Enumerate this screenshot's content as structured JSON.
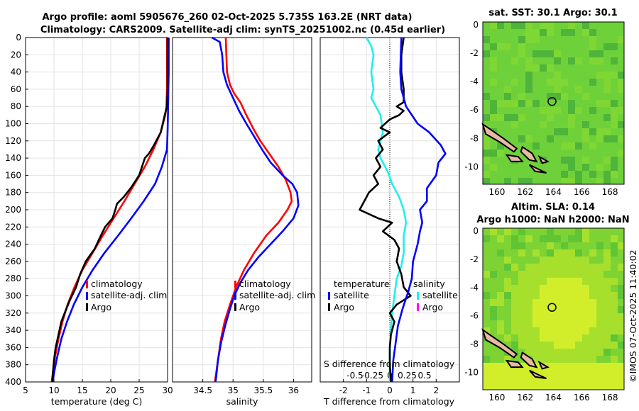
{
  "title": {
    "line1": "Argo profile: aoml 5905676_260 02-Oct-2025 5.735S 163.2E (NRT data)",
    "line2": "Climatology: CARS2009. Satellite-adj clim: synTS_20251002.nc (0.45d earlier)"
  },
  "credit": "©IMOS 07-Oct-2025 11:40:02",
  "colors": {
    "climatology": "#ff0000",
    "satellite": "#0000ff",
    "argo": "#000000",
    "cyan": "#22eeee",
    "magenta": "#ff00ff"
  },
  "chart_data": [
    {
      "type": "line",
      "id": "temperature",
      "xlabel": "temperature (deg C)",
      "ylabel": "",
      "xlim": [
        5,
        30
      ],
      "ylim": [
        400,
        0
      ],
      "xticks": [
        5,
        10,
        15,
        20,
        25,
        30
      ],
      "yticks": [
        0,
        20,
        40,
        60,
        80,
        100,
        120,
        140,
        160,
        180,
        200,
        220,
        240,
        260,
        280,
        300,
        320,
        340,
        360,
        380,
        400
      ],
      "grid": true,
      "legend": {
        "placement": "center-right",
        "entries": [
          "climatology",
          "satellite-adj. clim",
          "Argo"
        ]
      },
      "series": [
        {
          "name": "climatology",
          "color": "climatology",
          "points": [
            [
              29.9,
              0
            ],
            [
              29.9,
              20
            ],
            [
              29.9,
              40
            ],
            [
              29.9,
              60
            ],
            [
              29.8,
              80
            ],
            [
              29.6,
              90
            ],
            [
              28.8,
              110
            ],
            [
              27.5,
              130
            ],
            [
              26,
              150
            ],
            [
              24.2,
              170
            ],
            [
              22.4,
              190
            ],
            [
              20.5,
              210
            ],
            [
              18.6,
              230
            ],
            [
              16.8,
              250
            ],
            [
              15,
              270
            ],
            [
              13.6,
              290
            ],
            [
              12.4,
              310
            ],
            [
              11.5,
              330
            ],
            [
              10.8,
              350
            ],
            [
              10.2,
              370
            ],
            [
              9.8,
              390
            ],
            [
              9.6,
              400
            ]
          ]
        },
        {
          "name": "satellite-adj. clim",
          "color": "satellite",
          "points": [
            [
              30.2,
              0
            ],
            [
              30.2,
              40
            ],
            [
              30.1,
              80
            ],
            [
              30,
              110
            ],
            [
              29.9,
              130
            ],
            [
              29,
              150
            ],
            [
              27.8,
              170
            ],
            [
              25.8,
              190
            ],
            [
              23.6,
              210
            ],
            [
              21.3,
              230
            ],
            [
              18.9,
              250
            ],
            [
              16.8,
              270
            ],
            [
              15,
              290
            ],
            [
              13.5,
              310
            ],
            [
              12.3,
              330
            ],
            [
              11.3,
              350
            ],
            [
              10.6,
              370
            ],
            [
              10,
              390
            ],
            [
              9.8,
              400
            ]
          ]
        },
        {
          "name": "Argo",
          "color": "argo",
          "points": [
            [
              30,
              0
            ],
            [
              30,
              20
            ],
            [
              30,
              40
            ],
            [
              30,
              60
            ],
            [
              29.9,
              80
            ],
            [
              29.5,
              90
            ],
            [
              28.8,
              110
            ],
            [
              27.6,
              125
            ],
            [
              26.7,
              135
            ],
            [
              26,
              140
            ],
            [
              25.5,
              150
            ],
            [
              25,
              160
            ],
            [
              24,
              170
            ],
            [
              23.5,
              175
            ],
            [
              22.3,
              185
            ],
            [
              21.1,
              193
            ],
            [
              20.8,
              200
            ],
            [
              20.3,
              210
            ],
            [
              19,
              220
            ],
            [
              17.9,
              235
            ],
            [
              17.2,
              245
            ],
            [
              15.6,
              260
            ],
            [
              14.6,
              275
            ],
            [
              13.9,
              290
            ],
            [
              12.8,
              305
            ],
            [
              12,
              318
            ],
            [
              11.3,
              330
            ],
            [
              10.8,
              345
            ],
            [
              10.3,
              360
            ],
            [
              10,
              375
            ],
            [
              9.8,
              390
            ],
            [
              9.7,
              400
            ]
          ]
        }
      ]
    },
    {
      "type": "line",
      "id": "salinity",
      "xlabel": "salinity",
      "ylabel": "",
      "xlim": [
        34,
        36.3
      ],
      "ylim": [
        400,
        0
      ],
      "xticks": [
        34.5,
        35,
        35.5,
        36
      ],
      "grid": true,
      "legend": {
        "placement": "center-right",
        "entries": [
          "climatology",
          "satellite-adj. clim",
          "Argo"
        ]
      },
      "series": [
        {
          "name": "climatology",
          "color": "climatology",
          "points": [
            [
              34.88,
              0
            ],
            [
              34.89,
              20
            ],
            [
              34.9,
              40
            ],
            [
              34.95,
              55
            ],
            [
              35.02,
              65
            ],
            [
              35.12,
              75
            ],
            [
              35.22,
              90
            ],
            [
              35.33,
              105
            ],
            [
              35.45,
              120
            ],
            [
              35.6,
              135
            ],
            [
              35.75,
              150
            ],
            [
              35.87,
              165
            ],
            [
              35.95,
              180
            ],
            [
              35.97,
              190
            ],
            [
              35.9,
              200
            ],
            [
              35.75,
              215
            ],
            [
              35.55,
              230
            ],
            [
              35.35,
              250
            ],
            [
              35.18,
              270
            ],
            [
              35.05,
              290
            ],
            [
              34.95,
              310
            ],
            [
              34.86,
              330
            ],
            [
              34.8,
              350
            ],
            [
              34.76,
              370
            ],
            [
              34.72,
              390
            ],
            [
              34.7,
              400
            ]
          ]
        },
        {
          "name": "satellite-adj. clim",
          "color": "satellite",
          "points": [
            [
              34.65,
              0
            ],
            [
              34.78,
              5
            ],
            [
              34.82,
              20
            ],
            [
              34.84,
              40
            ],
            [
              34.9,
              55
            ],
            [
              35.0,
              70
            ],
            [
              35.1,
              85
            ],
            [
              35.22,
              100
            ],
            [
              35.35,
              115
            ],
            [
              35.48,
              130
            ],
            [
              35.62,
              145
            ],
            [
              35.82,
              160
            ],
            [
              35.98,
              170
            ],
            [
              36.06,
              180
            ],
            [
              36.08,
              195
            ],
            [
              36.0,
              210
            ],
            [
              35.82,
              225
            ],
            [
              35.62,
              240
            ],
            [
              35.42,
              255
            ],
            [
              35.25,
              270
            ],
            [
              35.12,
              285
            ],
            [
              35.02,
              300
            ],
            [
              34.95,
              315
            ],
            [
              34.87,
              335
            ],
            [
              34.8,
              355
            ],
            [
              34.75,
              375
            ],
            [
              34.72,
              395
            ],
            [
              34.71,
              400
            ]
          ]
        }
      ]
    },
    {
      "type": "line",
      "id": "difference",
      "xlabel": "T difference from climatology",
      "xlabel2": "S difference from climatology",
      "ylabel": "",
      "xlim": [
        -3,
        3
      ],
      "ylim": [
        400,
        0
      ],
      "xticks": [
        -2,
        -1,
        0,
        1,
        2
      ],
      "xticks2": [
        -0.5,
        -0.25,
        0,
        0.25,
        0.5
      ],
      "grid": true,
      "legend": {
        "placement": "center",
        "temperature_header": "temperature",
        "salinity_header": "salinity",
        "t_entries": [
          "satellite",
          "Argo"
        ],
        "s_entries": [
          "satellite",
          "Argo"
        ]
      },
      "series": [
        {
          "name": "T satellite",
          "color": "cyan",
          "points": [
            [
              -1,
              0
            ],
            [
              -0.8,
              10
            ],
            [
              -0.7,
              20
            ],
            [
              -0.8,
              40
            ],
            [
              -0.7,
              60
            ],
            [
              -0.8,
              70
            ],
            [
              -0.4,
              90
            ],
            [
              -0.3,
              110
            ],
            [
              -0.5,
              130
            ],
            [
              -0.4,
              140
            ],
            [
              -0.1,
              155
            ],
            [
              0.1,
              170
            ],
            [
              0.4,
              185
            ],
            [
              0.6,
              200
            ],
            [
              0.7,
              215
            ],
            [
              0.6,
              230
            ],
            [
              0.6,
              250
            ],
            [
              0.5,
              265
            ],
            [
              0.3,
              280
            ],
            [
              0.2,
              300
            ],
            [
              0.1,
              320
            ],
            [
              0.05,
              340
            ],
            [
              0.0,
              360
            ],
            [
              0.0,
              380
            ],
            [
              0.0,
              400
            ]
          ]
        },
        {
          "name": "T Argo",
          "color": "argo",
          "points": [
            [
              0.6,
              0
            ],
            [
              0.5,
              20
            ],
            [
              0.5,
              40
            ],
            [
              0.6,
              60
            ],
            [
              0.6,
              75
            ],
            [
              0.3,
              80
            ],
            [
              0.6,
              85
            ],
            [
              0.4,
              90
            ],
            [
              0,
              95
            ],
            [
              -0.4,
              105
            ],
            [
              0,
              110
            ],
            [
              -0.5,
              120
            ],
            [
              -0.3,
              130
            ],
            [
              -0.6,
              140
            ],
            [
              -0.4,
              150
            ],
            [
              -0.7,
              160
            ],
            [
              -0.5,
              170
            ],
            [
              -0.9,
              180
            ],
            [
              -1.1,
              190
            ],
            [
              -1.3,
              200
            ],
            [
              -0.5,
              210
            ],
            [
              0.1,
              215
            ],
            [
              -0.3,
              225
            ],
            [
              0.2,
              235
            ],
            [
              0.4,
              245
            ],
            [
              0.3,
              260
            ],
            [
              0.5,
              275
            ],
            [
              0.6,
              290
            ],
            [
              0.9,
              300
            ],
            [
              0.3,
              310
            ],
            [
              0,
              320
            ],
            [
              0.2,
              330
            ],
            [
              0.05,
              345
            ],
            [
              0,
              360
            ],
            [
              0,
              380
            ],
            [
              0.05,
              400
            ]
          ]
        },
        {
          "name": "S satellite",
          "color": "satellite",
          "points": [
            [
              0.5,
              0
            ],
            [
              0.45,
              40
            ],
            [
              0.5,
              60
            ],
            [
              0.6,
              70
            ],
            [
              0.7,
              80
            ],
            [
              1.2,
              100
            ],
            [
              1.7,
              110
            ],
            [
              2.2,
              125
            ],
            [
              2.4,
              135
            ],
            [
              2.1,
              145
            ],
            [
              2.0,
              160
            ],
            [
              1.6,
              175
            ],
            [
              1.6,
              190
            ],
            [
              1.3,
              200
            ],
            [
              1.4,
              215
            ],
            [
              1.3,
              225
            ],
            [
              1.2,
              240
            ],
            [
              1.0,
              260
            ],
            [
              0.95,
              280
            ],
            [
              0.8,
              295
            ],
            [
              0.55,
              315
            ],
            [
              0.35,
              335
            ],
            [
              0.25,
              355
            ],
            [
              0.15,
              375
            ],
            [
              0.1,
              400
            ]
          ]
        }
      ]
    }
  ],
  "maps": [
    {
      "id": "sst",
      "title": "sat. SST: 30.1 Argo: 30.1",
      "xticks": [
        "160",
        "162",
        "164",
        "166",
        "168"
      ],
      "yticks": [
        "0",
        "-2",
        "-4",
        "-6",
        "-8",
        "-10"
      ],
      "colors": {
        "base": "#6fd13a",
        "mid": "#7fd734",
        "light": "#93e231",
        "dark": "#4fb43a",
        "land": "#e8b9a3"
      }
    },
    {
      "id": "sla",
      "title1": "Altim. SLA: 0.14",
      "title2": "Argo h1000: NaN h2000: NaN",
      "xticks": [
        "160",
        "162",
        "164",
        "166",
        "168"
      ],
      "yticks": [
        "0",
        "-2",
        "-4",
        "-6",
        "-8",
        "-10"
      ],
      "colors": {
        "base": "#7dd334",
        "mid": "#a6e02d",
        "light": "#d2ee2a",
        "dark": "#5fc535",
        "land": "#e8b9a3"
      }
    }
  ]
}
